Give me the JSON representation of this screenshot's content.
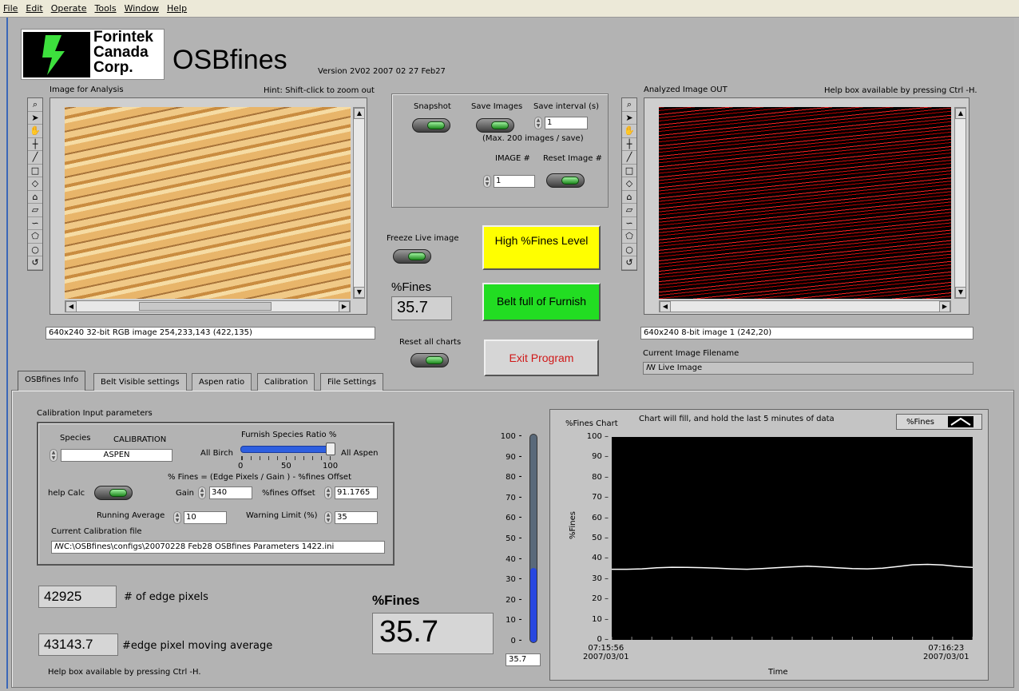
{
  "menu": [
    "File",
    "Edit",
    "Operate",
    "Tools",
    "Window",
    "Help"
  ],
  "logo": {
    "line1": "Forintek",
    "line2": "Canada",
    "line3": "Corp."
  },
  "app": {
    "title": "OSBfines",
    "version": "Version 2V02 2007 02 27 Feb27"
  },
  "left_image": {
    "label": "Image for Analysis",
    "hint": "Hint: Shift-click to zoom out",
    "status": "640x240 32-bit RGB image 254,233,143    (422,135)"
  },
  "right_image": {
    "label": "Analyzed Image OUT",
    "hint": "Help box available by pressing Ctrl -H.",
    "status": "640x240 8-bit image 1    (242,20)",
    "filename_label": "Current Image Filename",
    "filename": "Live Image"
  },
  "tools": [
    "zoom-icon",
    "arrow-icon",
    "hand-icon",
    "crosshair-icon",
    "line-icon",
    "rect-icon",
    "diamond-icon",
    "polygon-icon",
    "freehand-icon",
    "lasso-icon",
    "oval-icon",
    "ring-icon",
    "curve-icon"
  ],
  "controls": {
    "snapshot": "Snapshot",
    "save_images": "Save Images",
    "save_interval_label": "Save interval (s)",
    "save_interval": "1",
    "max_note": "(Max. 200 images / save)",
    "image_num_label": "IMAGE #",
    "image_num": "1",
    "reset_image": "Reset Image #",
    "freeze": "Freeze Live image",
    "fines_label": "%Fines",
    "fines_value": "35.7",
    "reset_charts": "Reset all charts"
  },
  "buttons": {
    "high_fines": "High %Fines Level",
    "belt_full": "Belt full of Furnish",
    "exit": "Exit Program"
  },
  "tabs": [
    "OSBfines Info",
    "Belt Visible settings",
    "Aspen ratio",
    "Calibration",
    "File Settings"
  ],
  "calib": {
    "section": "Calibration Input parameters",
    "species_label": "Species",
    "calibration_label": "CALIBRATION",
    "species": "ASPEN",
    "ratio_label": "Furnish Species Ratio %",
    "all_birch": "All Birch",
    "all_aspen": "All Aspen",
    "ratio_ticks": [
      "0",
      "50",
      "100"
    ],
    "ratio_value": 100,
    "formula": "% Fines = (Edge Pixels / Gain ) - %fines Offset",
    "help_calc": "help Calc",
    "gain_label": "Gain",
    "gain": "340",
    "offset_label": "%fines Offset",
    "offset": "91.1765",
    "running_avg_label": "Running Average",
    "running_avg": "10",
    "warning_label": "Warning Limit (%)",
    "warning": "35",
    "file_label": "Current Calibration file",
    "file": "C:\\OSBfines\\configs\\20070228 Feb28 OSBfines Parameters 1422.ini"
  },
  "stats": {
    "edge_pixels": "42925",
    "edge_pixels_label": "# of edge pixels",
    "moving_avg": "43143.7",
    "moving_avg_label": "#edge pixel moving average",
    "help_note": "Help box available by pressing Ctrl -H.",
    "big_label": "%Fines",
    "big_value": "35.7"
  },
  "gauge": {
    "value": 35.7,
    "readout": "35.7",
    "ticks": [
      "100",
      "90",
      "80",
      "70",
      "60",
      "50",
      "40",
      "30",
      "20",
      "10",
      "0"
    ]
  },
  "chart_data": {
    "type": "line",
    "title": "%Fines Chart",
    "subtitle": "Chart will fill, and hold the last 5 minutes of data",
    "ylabel": "%Fines",
    "xlabel": "Time",
    "ylim": [
      0,
      100
    ],
    "yticks": [
      "100",
      "90",
      "80",
      "70",
      "60",
      "50",
      "40",
      "30",
      "20",
      "10",
      "0"
    ],
    "x_start": "07:15:56",
    "x_start_date": "2007/03/01",
    "x_end": "07:16:23",
    "x_end_date": "2007/03/01",
    "legend": "%Fines",
    "series": [
      {
        "name": "%Fines",
        "values": [
          34.8,
          34.8,
          35.0,
          35.5,
          35.8,
          35.7,
          35.6,
          35.3,
          35.0,
          34.8,
          35.1,
          35.6,
          36.0,
          36.3,
          36.0,
          35.5,
          35.1,
          35.0,
          35.3,
          36.1,
          37.0,
          37.2,
          36.9,
          36.2,
          35.7
        ]
      }
    ]
  }
}
